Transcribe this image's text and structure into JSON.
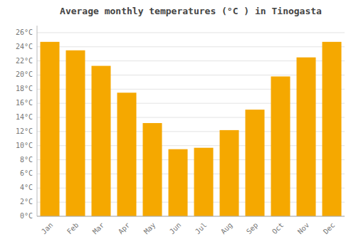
{
  "chart_data": {
    "type": "bar",
    "title": "Average monthly temperatures (°C ) in Tinogasta",
    "categories": [
      "Jan",
      "Feb",
      "Mar",
      "Apr",
      "May",
      "Jun",
      "Jul",
      "Aug",
      "Sep",
      "Oct",
      "Nov",
      "Dec"
    ],
    "values": [
      24.7,
      23.5,
      21.3,
      17.5,
      13.2,
      9.5,
      9.7,
      12.2,
      15.1,
      19.8,
      22.5,
      24.7
    ],
    "color": "#F5A800",
    "ylim": [
      0,
      27
    ],
    "yticks": [
      {
        "value": 0,
        "label": "0°C"
      },
      {
        "value": 2,
        "label": "2°C"
      },
      {
        "value": 4,
        "label": "4°C"
      },
      {
        "value": 6,
        "label": "6°C"
      },
      {
        "value": 8,
        "label": "8°C"
      },
      {
        "value": 10,
        "label": "10°C"
      },
      {
        "value": 12,
        "label": "12°C"
      },
      {
        "value": 14,
        "label": "14°C"
      },
      {
        "value": 16,
        "label": "16°C"
      },
      {
        "value": 18,
        "label": "18°C"
      },
      {
        "value": 20,
        "label": "20°C"
      },
      {
        "value": 22,
        "label": "22°C"
      },
      {
        "value": 24,
        "label": "24°C"
      },
      {
        "value": 26,
        "label": "26°C"
      }
    ],
    "grid": true
  }
}
